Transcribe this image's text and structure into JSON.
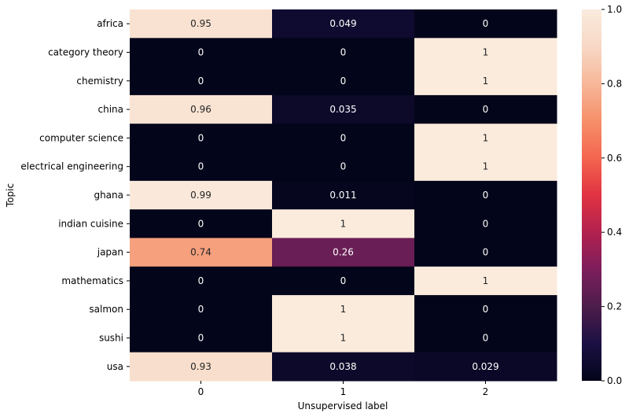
{
  "chart_data": {
    "type": "heatmap",
    "title": "",
    "xlabel": "Unsupervised label",
    "ylabel": "Topic",
    "x_categories": [
      "0",
      "1",
      "2"
    ],
    "y_categories": [
      "africa",
      "category theory",
      "chemistry",
      "china",
      "computer science",
      "electrical engineering",
      "ghana",
      "indian cuisine",
      "japan",
      "mathematics",
      "salmon",
      "sushi",
      "usa"
    ],
    "values": [
      [
        0.95,
        0.049,
        0
      ],
      [
        0,
        0,
        1
      ],
      [
        0,
        0,
        1
      ],
      [
        0.96,
        0.035,
        0
      ],
      [
        0,
        0,
        1
      ],
      [
        0,
        0,
        1
      ],
      [
        0.99,
        0.011,
        0
      ],
      [
        0,
        1,
        0
      ],
      [
        0.74,
        0.26,
        0
      ],
      [
        0,
        0,
        1
      ],
      [
        0,
        1,
        0
      ],
      [
        0,
        1,
        0
      ],
      [
        0.93,
        0.038,
        0.029
      ]
    ],
    "cell_labels": [
      [
        "0.95",
        "0.049",
        "0"
      ],
      [
        "0",
        "0",
        "1"
      ],
      [
        "0",
        "0",
        "1"
      ],
      [
        "0.96",
        "0.035",
        "0"
      ],
      [
        "0",
        "0",
        "1"
      ],
      [
        "0",
        "0",
        "1"
      ],
      [
        "0.99",
        "0.011",
        "0"
      ],
      [
        "0",
        "1",
        "0"
      ],
      [
        "0.74",
        "0.26",
        "0"
      ],
      [
        "0",
        "0",
        "1"
      ],
      [
        "0",
        "1",
        "0"
      ],
      [
        "0",
        "1",
        "0"
      ],
      [
        "0.93",
        "0.038",
        "0.029"
      ]
    ],
    "colorbar": {
      "range": [
        0,
        1
      ],
      "tick_values": [
        0,
        0.2,
        0.4,
        0.6,
        0.8,
        1.0
      ],
      "tick_labels": [
        "0.0",
        "0.2",
        "0.4",
        "0.6",
        "0.8",
        "1.0"
      ],
      "colormap": "rocket",
      "colormap_stops": [
        "#03051a",
        "#1c1044",
        "#4c1d4b",
        "#7d1e5b",
        "#b2214f",
        "#e13342",
        "#f4654f",
        "#f6906a",
        "#f7b799",
        "#f7d8c5",
        "#faebdd"
      ]
    },
    "grid": false,
    "legend": "colorbar at right"
  }
}
